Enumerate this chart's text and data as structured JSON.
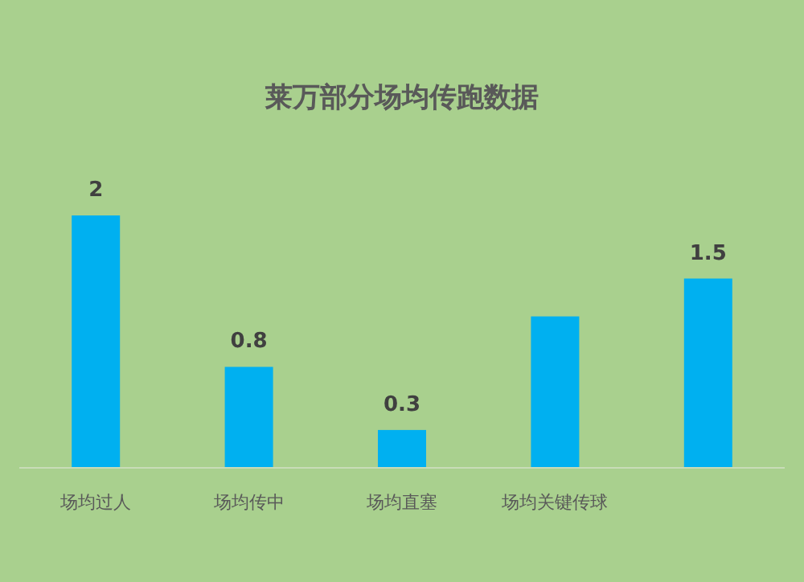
{
  "chart_data": {
    "type": "bar",
    "title": "莱万部分场均传跑数据",
    "categories": [
      "场均过人",
      "场均传中",
      "场均直塞",
      "场均关键传球",
      null
    ],
    "values": [
      2,
      0.8,
      0.3,
      1.2,
      1.5
    ],
    "value_labels": [
      "2",
      "0.8",
      "0.3",
      null,
      "1.5"
    ],
    "color": "#00b0f0"
  }
}
